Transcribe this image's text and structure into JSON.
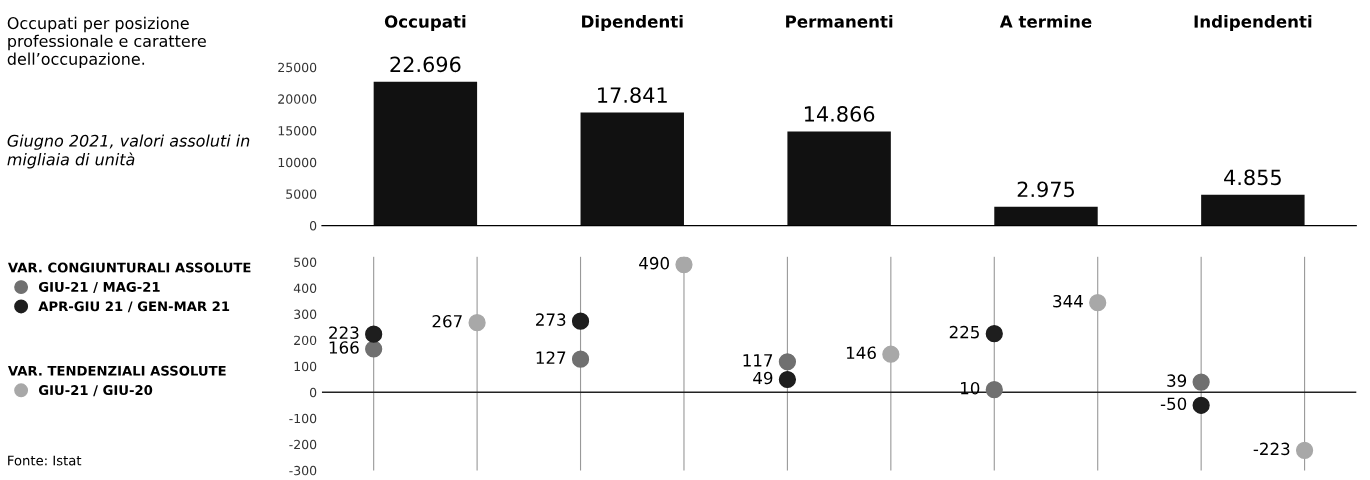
{
  "chart_data": [
    {
      "type": "bar",
      "title": "Occupati per posizione professionale e carattere dell’occupazione.",
      "subtitle": "Giugno 2021, valori assoluti in migliaia di unità",
      "categories": [
        "Occupati",
        "Dipendenti",
        "Permanenti",
        "A termine",
        "Indipendenti"
      ],
      "values": [
        22696,
        17841,
        14866,
        2975,
        4855
      ],
      "color": "#111111",
      "value_labels": [
        "22.696",
        "17.841",
        "14.866",
        "2.975",
        "4.855"
      ],
      "ylim": [
        0,
        25000
      ],
      "yticks": [
        0,
        5000,
        10000,
        15000,
        20000,
        25000
      ]
    },
    {
      "type": "scatter",
      "categories": [
        null,
        null,
        null,
        null,
        null,
        null,
        null,
        null,
        null,
        null
      ],
      "series": [
        {
          "name": "GIU-21 / MAG-21",
          "color": "#707070",
          "values": [
            166,
            null,
            127,
            null,
            117,
            null,
            10,
            null,
            39,
            null
          ]
        },
        {
          "name": "APR-GIU 21 / GEN-MAR 21",
          "color": "#1e1e1e",
          "values": [
            223,
            null,
            273,
            null,
            49,
            null,
            225,
            null,
            -50,
            null
          ]
        },
        {
          "name": "GIU-21 / GIU-20",
          "color": "#a8a8a8",
          "values": [
            null,
            267,
            null,
            490,
            null,
            146,
            null,
            344,
            null,
            -223
          ]
        }
      ],
      "data_labels": true,
      "marker": "circle",
      "grid": "x",
      "legend": "left",
      "ylim": [
        -300,
        520
      ],
      "yticks": [
        -300,
        -200,
        -100,
        0,
        100,
        200,
        300,
        400,
        500
      ],
      "ref_lines": [
        {
          "axis": "y",
          "value": 0,
          "color": "#222222"
        }
      ],
      "annotations": [
        "VAR. CONGIUNTURALI ASSOLUTE",
        "VAR. TENDENZIALI ASSOLUTE",
        "Fonte: Istat"
      ]
    }
  ]
}
